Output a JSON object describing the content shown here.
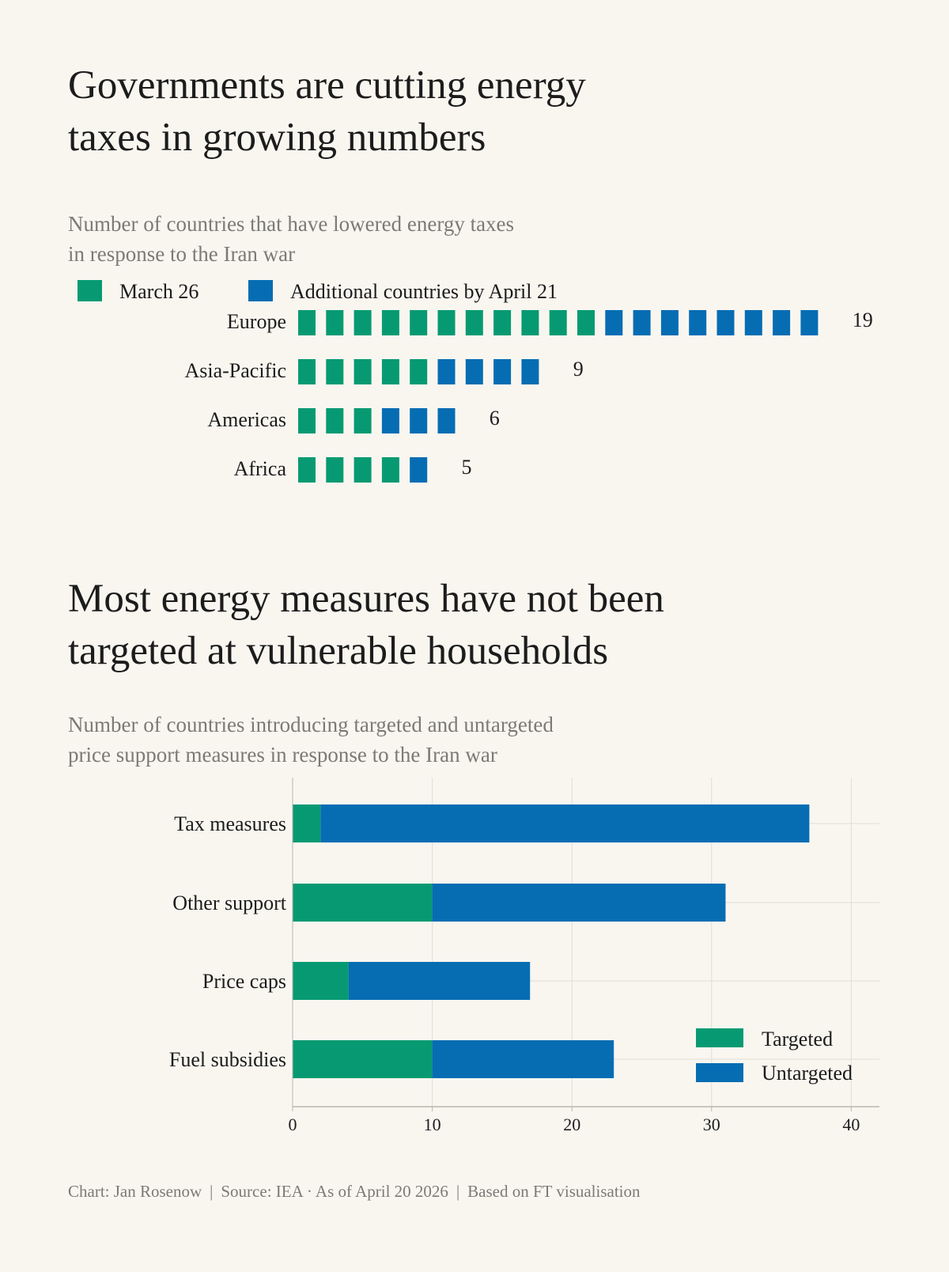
{
  "colors": {
    "march": "#079a72",
    "additional": "#066db3",
    "targeted": "#079a72",
    "untargeted": "#066db3",
    "grid": "#e1ddd5"
  },
  "chart_data": [
    {
      "type": "bar",
      "style": "waffle-stacked-horizontal",
      "title": "Governments are cutting energy\ntaxes in growing numbers",
      "subtitle": "Number of countries that have lowered energy taxes\nin response to the Iran war",
      "categories": [
        "Europe",
        "Asia-Pacific",
        "Americas",
        "Africa"
      ],
      "series": [
        {
          "name": "March 26",
          "values": [
            11,
            5,
            3,
            4
          ]
        },
        {
          "name": "Additional countries by April 21",
          "values": [
            8,
            4,
            3,
            1
          ]
        }
      ],
      "totals": [
        "19",
        "9",
        "6",
        "5"
      ],
      "legend": "top-left"
    },
    {
      "type": "bar",
      "style": "stacked-horizontal",
      "title": "Most energy measures have not been\ntargeted at vulnerable households",
      "subtitle": "Number of countries introducing targeted and untargeted\nprice support measures in response to the Iran war",
      "categories": [
        "Tax measures",
        "Other support",
        "Price caps",
        "Fuel subsidies"
      ],
      "series": [
        {
          "name": "Targeted",
          "values": [
            2,
            10,
            4,
            10
          ]
        },
        {
          "name": "Untargeted",
          "values": [
            35,
            21,
            13,
            13
          ]
        }
      ],
      "xlim": [
        0,
        42
      ],
      "xticks": [
        "0",
        "10",
        "20",
        "30",
        "40"
      ],
      "grid": true,
      "legend": "bottom-right"
    }
  ],
  "footer": {
    "chart": "Chart: Jan Rosenow",
    "source": "Source: IEA · As of April 20 2026",
    "note": "Based on FT visualisation",
    "separator": "|"
  }
}
